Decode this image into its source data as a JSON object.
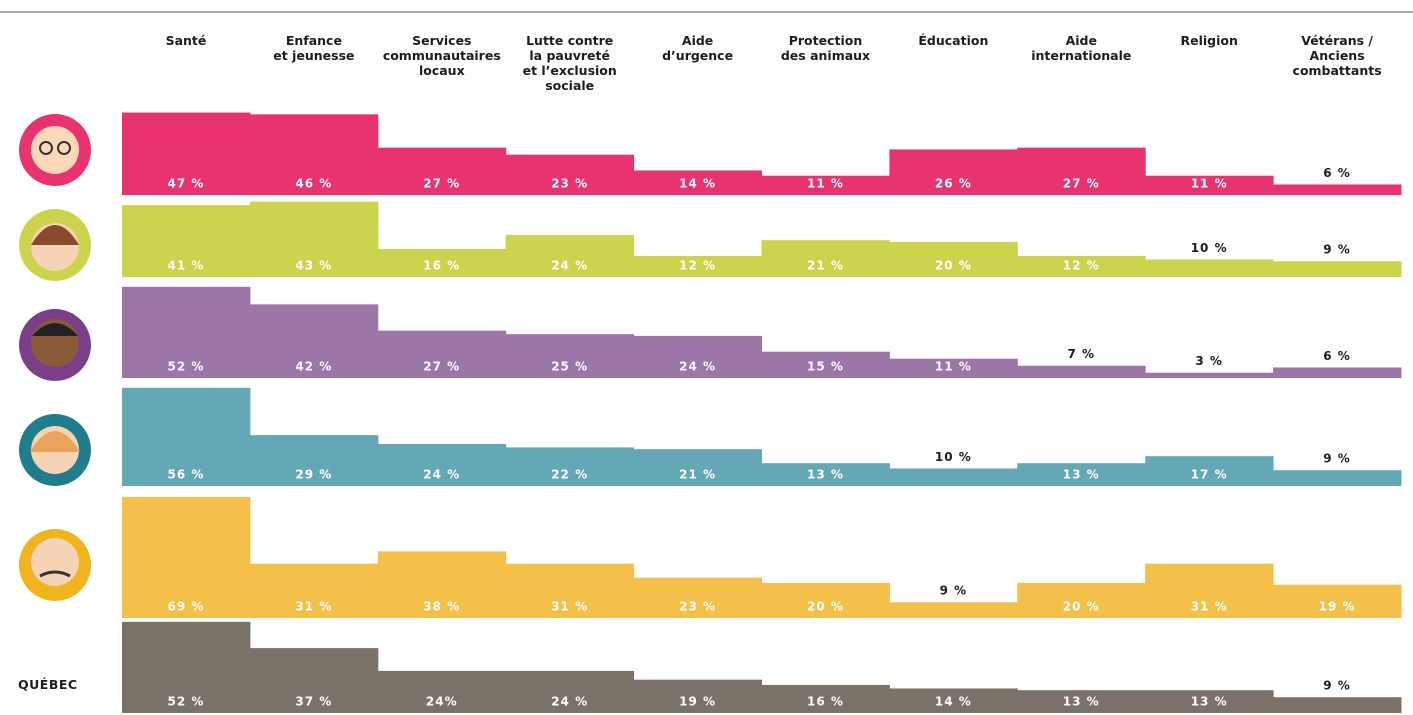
{
  "chart_data": {
    "type": "bar",
    "categories": [
      "Santé",
      "Enfance\net jeunesse",
      "Services\ncommunautaires\nlocaux",
      "Lutte contre\nla pauvreté\net l’exclusion\nsociale",
      "Aide\nd’urgence",
      "Protection\ndes animaux",
      "Éducation",
      "Aide\ninternationale",
      "Religion",
      "Vétérans /\nAnciens combattants"
    ],
    "ylim": [
      0,
      70
    ],
    "series": [
      {
        "color": "#e8336f",
        "values": [
          47,
          46,
          27,
          23,
          14,
          11,
          26,
          27,
          11,
          6
        ],
        "value_labels": [
          "47 %",
          "46 %",
          "27 %",
          "23 %",
          "14 %",
          "11 %",
          "26 %",
          "27 %",
          "11 %",
          "6 %"
        ]
      },
      {
        "color": "#cbd44c",
        "values": [
          41,
          43,
          16,
          24,
          12,
          21,
          20,
          12,
          10,
          9
        ],
        "value_labels": [
          "41 %",
          "43 %",
          "16 %",
          "24 %",
          "12 %",
          "21 %",
          "20 %",
          "12 %",
          "10 %",
          "9 %"
        ]
      },
      {
        "color": "#9c76a8",
        "values": [
          52,
          42,
          27,
          25,
          24,
          15,
          11,
          7,
          3,
          6
        ],
        "value_labels": [
          "52 %",
          "42 %",
          "27 %",
          "25 %",
          "24 %",
          "15 %",
          "11 %",
          "7 %",
          "3 %",
          "6 %"
        ]
      },
      {
        "color": "#64a8b8",
        "values": [
          56,
          29,
          24,
          22,
          21,
          13,
          10,
          13,
          17,
          9
        ],
        "value_labels": [
          "56 %",
          "29 %",
          "24 %",
          "22 %",
          "21 %",
          "13 %",
          "10 %",
          "13 %",
          "17 %",
          "9 %"
        ]
      },
      {
        "color": "#f5c04a",
        "values": [
          69,
          31,
          38,
          31,
          23,
          20,
          9,
          20,
          31,
          19
        ],
        "value_labels": [
          "69 %",
          "31 %",
          "38 %",
          "31 %",
          "23 %",
          "20 %",
          "9 %",
          "20 %",
          "31 %",
          "19 %"
        ]
      },
      {
        "name": "QUÉBEC",
        "color": "#7a7268",
        "values": [
          52,
          37,
          24,
          24,
          19,
          16,
          14,
          13,
          13,
          9
        ],
        "value_labels": [
          "52 %",
          "37 %",
          "24%",
          "24 %",
          "19 %",
          "16 %",
          "14 %",
          "13 %",
          "13 %",
          "9 %"
        ]
      }
    ]
  }
}
